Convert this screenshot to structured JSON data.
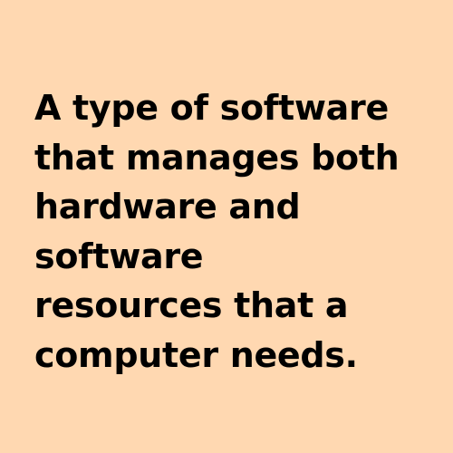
{
  "card": {
    "lines": [
      "A type of software",
      "that manages both",
      "hardware and",
      "software",
      "resources that a",
      "computer needs."
    ]
  },
  "colors": {
    "background": "#FFD8B1",
    "text": "#000000"
  }
}
